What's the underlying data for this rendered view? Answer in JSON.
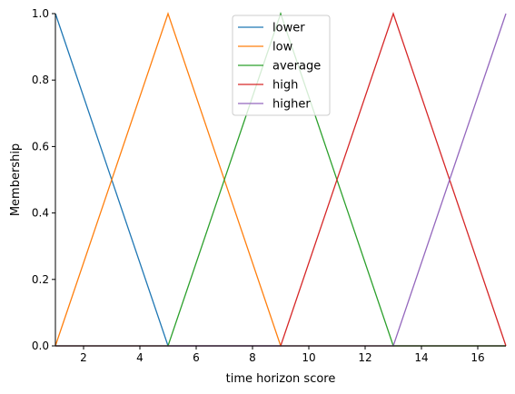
{
  "chart_data": {
    "type": "line",
    "title": "",
    "xlabel": "time horizon score",
    "ylabel": "Membership",
    "xlim": [
      1,
      17
    ],
    "ylim": [
      0,
      1
    ],
    "xticks": [
      2,
      4,
      6,
      8,
      10,
      12,
      14,
      16
    ],
    "yticks": [
      0.0,
      0.2,
      0.4,
      0.6,
      0.8,
      1.0
    ],
    "ytick_labels": [
      "0.0",
      "0.2",
      "0.4",
      "0.6",
      "0.8",
      "1.0"
    ],
    "grid": false,
    "legend_position": "top-center",
    "series": [
      {
        "name": "lower",
        "color": "#1f77b4",
        "x": [
          1,
          5,
          17
        ],
        "y": [
          1,
          0,
          0
        ]
      },
      {
        "name": "low",
        "color": "#ff7f0e",
        "x": [
          1,
          5,
          9,
          17
        ],
        "y": [
          0,
          1,
          0,
          0
        ]
      },
      {
        "name": "average",
        "color": "#2ca02c",
        "x": [
          1,
          5,
          9,
          13,
          17
        ],
        "y": [
          0,
          0,
          1,
          0,
          0
        ]
      },
      {
        "name": "high",
        "color": "#d62728",
        "x": [
          1,
          9,
          13,
          17
        ],
        "y": [
          0,
          0,
          1,
          0
        ]
      },
      {
        "name": "higher",
        "color": "#9467bd",
        "x": [
          1,
          13,
          17
        ],
        "y": [
          0,
          0,
          1
        ]
      }
    ]
  }
}
